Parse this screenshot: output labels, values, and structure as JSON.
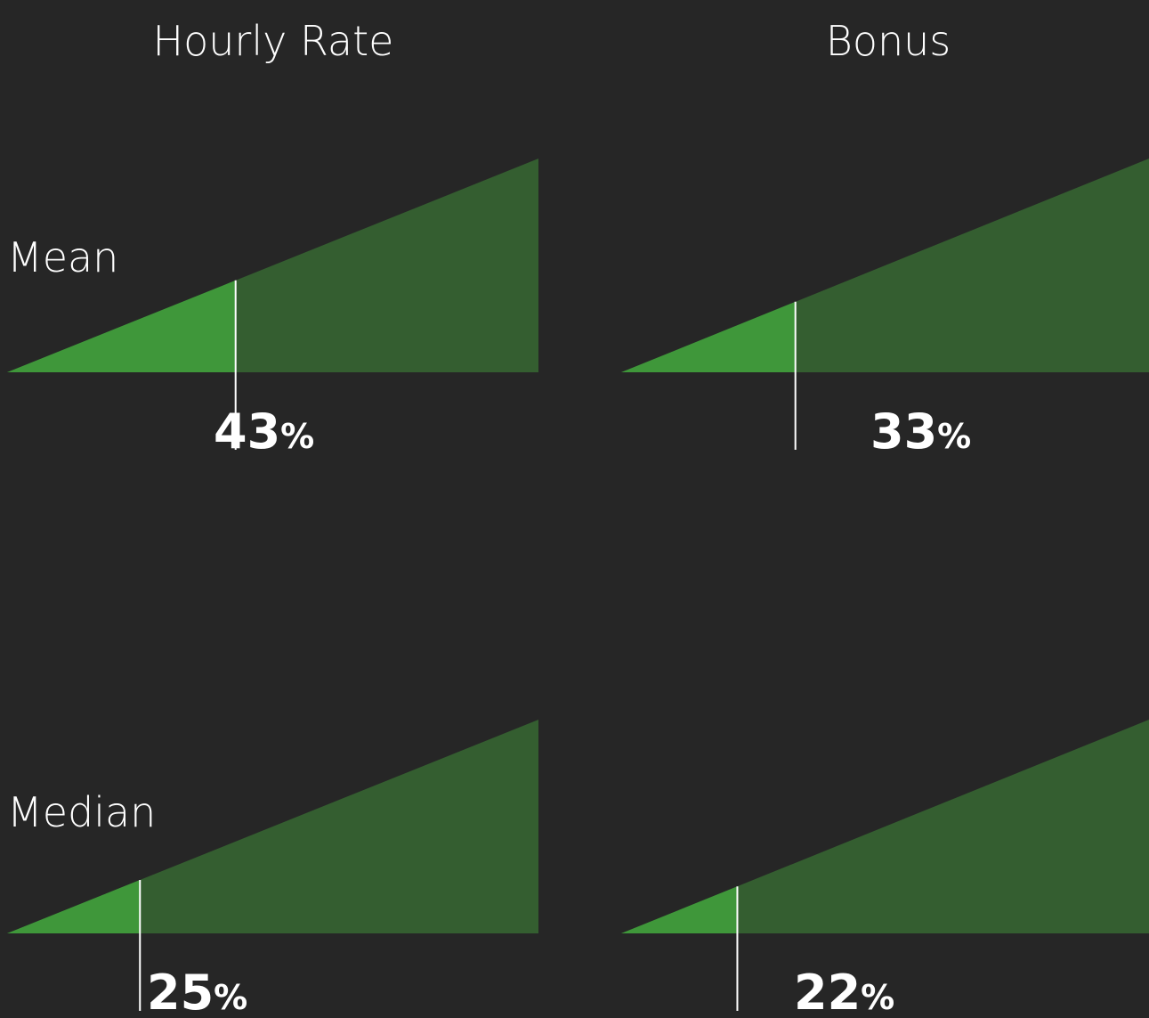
{
  "columns": [
    "Hourly Rate",
    "Bonus"
  ],
  "rows": [
    "Mean",
    "Median"
  ],
  "values": [
    [
      43,
      33
    ],
    [
      25,
      22
    ]
  ],
  "unit": "%",
  "scale": [
    0,
    100
  ],
  "colors": {
    "fill": "#3f973a",
    "track": "#345e30",
    "marker": "#ffffff"
  }
}
